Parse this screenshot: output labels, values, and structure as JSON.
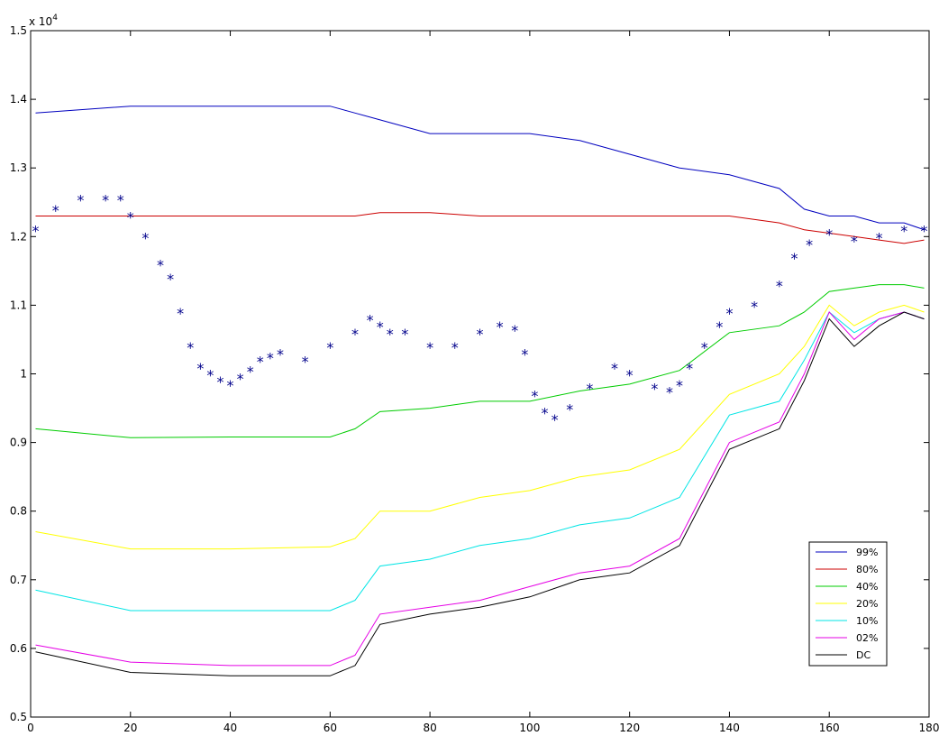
{
  "chart_data": {
    "type": "line",
    "title": "",
    "xlabel": "",
    "ylabel": "",
    "y_multiplier": "x 10",
    "y_multiplier_exp": "4",
    "xlim": [
      0,
      180
    ],
    "ylim": [
      0.5,
      1.5
    ],
    "x_ticks": [
      "0",
      "20",
      "40",
      "60",
      "80",
      "100",
      "120",
      "140",
      "160",
      "180"
    ],
    "y_ticks": [
      "0.5",
      "0.6",
      "0.7",
      "0.8",
      "0.9",
      "1",
      "1.1",
      "1.2",
      "1.3",
      "1.4",
      "1.5"
    ],
    "grid": false,
    "legend_position": "lower-right",
    "x": [
      1,
      20,
      40,
      60,
      65,
      70,
      80,
      90,
      100,
      110,
      120,
      130,
      140,
      150,
      155,
      160,
      165,
      170,
      175,
      179
    ],
    "series": [
      {
        "name": "99%",
        "color": "#0000bf",
        "values": [
          1.38,
          1.39,
          1.39,
          1.39,
          1.38,
          1.37,
          1.35,
          1.35,
          1.35,
          1.34,
          1.32,
          1.3,
          1.29,
          1.27,
          1.24,
          1.23,
          1.23,
          1.22,
          1.22,
          1.21
        ]
      },
      {
        "name": "80%",
        "color": "#cc0000",
        "values": [
          1.23,
          1.23,
          1.23,
          1.23,
          1.23,
          1.235,
          1.235,
          1.23,
          1.23,
          1.23,
          1.23,
          1.23,
          1.23,
          1.22,
          1.21,
          1.205,
          1.2,
          1.195,
          1.19,
          1.195
        ]
      },
      {
        "name": "40%",
        "color": "#00cc00",
        "values": [
          0.92,
          0.907,
          0.908,
          0.908,
          0.92,
          0.945,
          0.95,
          0.96,
          0.96,
          0.975,
          0.985,
          1.005,
          1.06,
          1.07,
          1.09,
          1.12,
          1.125,
          1.13,
          1.13,
          1.125
        ]
      },
      {
        "name": "20%",
        "color": "#ffff00",
        "values": [
          0.77,
          0.745,
          0.745,
          0.748,
          0.76,
          0.8,
          0.8,
          0.82,
          0.83,
          0.85,
          0.86,
          0.89,
          0.97,
          1.0,
          1.04,
          1.1,
          1.07,
          1.09,
          1.1,
          1.09
        ]
      },
      {
        "name": "10%",
        "color": "#00e5e5",
        "values": [
          0.685,
          0.655,
          0.655,
          0.655,
          0.67,
          0.72,
          0.73,
          0.75,
          0.76,
          0.78,
          0.79,
          0.82,
          0.94,
          0.96,
          1.02,
          1.09,
          1.06,
          1.08,
          1.09,
          1.08
        ]
      },
      {
        "name": "02%",
        "color": "#e500e5",
        "values": [
          0.605,
          0.58,
          0.575,
          0.575,
          0.59,
          0.65,
          0.66,
          0.67,
          0.69,
          0.71,
          0.72,
          0.76,
          0.9,
          0.93,
          1.0,
          1.09,
          1.05,
          1.08,
          1.09,
          1.08
        ]
      },
      {
        "name": "DC",
        "color": "#000000",
        "values": [
          0.595,
          0.565,
          0.56,
          0.56,
          0.575,
          0.635,
          0.65,
          0.66,
          0.675,
          0.7,
          0.71,
          0.75,
          0.89,
          0.92,
          0.99,
          1.08,
          1.04,
          1.07,
          1.09,
          1.08
        ]
      }
    ],
    "markers": {
      "color": "#00008b",
      "symbol": "*",
      "x": [
        1,
        5,
        10,
        15,
        18,
        20,
        23,
        26,
        28,
        30,
        32,
        34,
        36,
        38,
        40,
        42,
        44,
        46,
        48,
        50,
        55,
        60,
        65,
        68,
        70,
        72,
        75,
        80,
        85,
        90,
        94,
        97,
        99,
        101,
        103,
        105,
        108,
        112,
        117,
        120,
        125,
        128,
        130,
        132,
        135,
        138,
        140,
        145,
        150,
        153,
        156,
        160,
        165,
        170,
        175,
        179
      ],
      "values": [
        1.21,
        1.24,
        1.255,
        1.255,
        1.255,
        1.23,
        1.2,
        1.16,
        1.14,
        1.09,
        1.04,
        1.01,
        1.0,
        0.99,
        0.985,
        0.995,
        1.005,
        1.02,
        1.025,
        1.03,
        1.02,
        1.04,
        1.06,
        1.08,
        1.07,
        1.06,
        1.06,
        1.04,
        1.04,
        1.06,
        1.07,
        1.065,
        1.03,
        0.97,
        0.945,
        0.935,
        0.95,
        0.98,
        1.01,
        1.0,
        0.98,
        0.975,
        0.985,
        1.01,
        1.04,
        1.07,
        1.09,
        1.1,
        1.13,
        1.17,
        1.19,
        1.205,
        1.195,
        1.2,
        1.21,
        1.21
      ]
    }
  }
}
